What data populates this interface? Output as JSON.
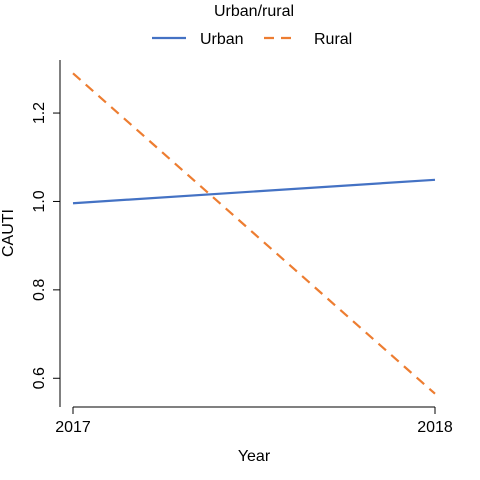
{
  "chart_data": {
    "type": "line",
    "title": "",
    "xlabel": "Year",
    "ylabel": "CAUTI",
    "categories": [
      "2017",
      "2018"
    ],
    "x_tick_labels": [
      "2017",
      "2018"
    ],
    "y_tick_labels": [
      "0.6",
      "0.8",
      "1.0",
      "1.2"
    ],
    "y_ticks": [
      0.6,
      0.8,
      1.0,
      1.2
    ],
    "ylim": [
      0.535,
      1.32
    ],
    "grid": false,
    "legend": {
      "title": "Urban/rural",
      "placement": "top"
    },
    "series": [
      {
        "name": "Urban",
        "values": [
          0.996,
          1.049
        ],
        "color": "#4472C4",
        "dash": "solid"
      },
      {
        "name": "Rural",
        "values": [
          1.29,
          0.565
        ],
        "color": "#ED7D31",
        "dash": "dashed"
      }
    ]
  }
}
